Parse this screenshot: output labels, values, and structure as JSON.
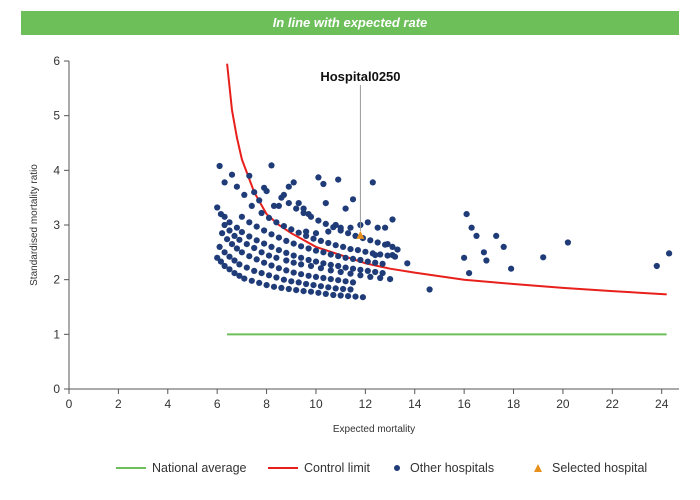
{
  "banner": {
    "text": "In line with expected rate",
    "color": "#6cbf59"
  },
  "chart_data": {
    "type": "scatter",
    "xlabel": "Expected mortality",
    "ylabel": "Standardised mortality ratio",
    "xlim": [
      0,
      24.7
    ],
    "ylim": [
      0,
      6
    ],
    "xticks": [
      0,
      2,
      4,
      6,
      8,
      10,
      12,
      14,
      16,
      18,
      20,
      22,
      24
    ],
    "yticks": [
      0,
      1,
      2,
      3,
      4,
      5,
      6
    ],
    "national_average": {
      "name": "National average",
      "y": 1,
      "x_range": [
        6.4,
        24.2
      ],
      "color": "#6cbf59"
    },
    "control_limit": {
      "name": "Control limit",
      "color": "#e8201c",
      "points": [
        [
          6.4,
          5.95
        ],
        [
          6.6,
          5.1
        ],
        [
          6.8,
          4.6
        ],
        [
          7.0,
          4.2
        ],
        [
          7.5,
          3.6
        ],
        [
          8.0,
          3.2
        ],
        [
          8.5,
          3.0
        ],
        [
          9.0,
          2.85
        ],
        [
          10.0,
          2.6
        ],
        [
          11.0,
          2.45
        ],
        [
          12.0,
          2.3
        ],
        [
          13.0,
          2.2
        ],
        [
          14.0,
          2.13
        ],
        [
          16.0,
          2.0
        ],
        [
          18.0,
          1.92
        ],
        [
          20.0,
          1.85
        ],
        [
          22.0,
          1.79
        ],
        [
          24.2,
          1.73
        ]
      ]
    },
    "other_hospitals": {
      "name": "Other hospitals",
      "color": "#1f3c78",
      "points": [
        [
          6.1,
          4.08
        ],
        [
          6.3,
          3.78
        ],
        [
          6.6,
          3.92
        ],
        [
          6.8,
          3.7
        ],
        [
          7.1,
          3.55
        ],
        [
          7.3,
          3.9
        ],
        [
          7.5,
          3.6
        ],
        [
          7.7,
          3.45
        ],
        [
          7.9,
          3.68
        ],
        [
          8.0,
          3.62
        ],
        [
          8.2,
          4.09
        ],
        [
          8.3,
          3.35
        ],
        [
          8.5,
          3.35
        ],
        [
          8.7,
          3.55
        ],
        [
          8.9,
          3.7
        ],
        [
          9.1,
          3.78
        ],
        [
          9.3,
          3.4
        ],
        [
          9.5,
          3.3
        ],
        [
          9.7,
          3.2
        ],
        [
          10.1,
          3.87
        ],
        [
          10.3,
          3.75
        ],
        [
          10.4,
          3.4
        ],
        [
          10.9,
          3.83
        ],
        [
          11.2,
          3.3
        ],
        [
          11.5,
          3.47
        ],
        [
          12.3,
          3.78
        ],
        [
          12.5,
          2.95
        ],
        [
          12.8,
          2.95
        ],
        [
          13.1,
          3.1
        ],
        [
          13.3,
          2.55
        ],
        [
          13.7,
          2.3
        ],
        [
          14.6,
          1.82
        ],
        [
          16.1,
          3.2
        ],
        [
          16.3,
          2.95
        ],
        [
          16.5,
          2.8
        ],
        [
          16.8,
          2.5
        ],
        [
          16.9,
          2.35
        ],
        [
          17.3,
          2.8
        ],
        [
          17.6,
          2.6
        ],
        [
          17.9,
          2.2
        ],
        [
          16.0,
          2.4
        ],
        [
          16.2,
          2.12
        ],
        [
          19.2,
          2.41
        ],
        [
          20.2,
          2.68
        ],
        [
          23.8,
          2.25
        ],
        [
          24.3,
          2.48
        ],
        [
          12.9,
          2.65
        ],
        [
          13.1,
          2.45
        ],
        [
          12.4,
          2.45
        ],
        [
          11.0,
          2.95
        ],
        [
          11.4,
          2.95
        ],
        [
          11.8,
          3.0
        ],
        [
          10.8,
          3.0
        ],
        [
          10.5,
          2.88
        ],
        [
          10.0,
          2.85
        ],
        [
          9.6,
          2.88
        ],
        [
          12.1,
          3.05
        ],
        [
          6.0,
          3.32
        ],
        [
          6.15,
          3.2
        ],
        [
          6.3,
          3.0
        ],
        [
          6.5,
          2.9
        ],
        [
          6.7,
          2.8
        ],
        [
          6.9,
          2.73
        ],
        [
          7.2,
          2.65
        ],
        [
          7.5,
          2.58
        ],
        [
          7.8,
          2.5
        ],
        [
          8.1,
          2.44
        ],
        [
          8.4,
          2.4
        ],
        [
          8.8,
          2.35
        ],
        [
          9.1,
          2.31
        ],
        [
          9.4,
          2.28
        ],
        [
          9.8,
          2.25
        ],
        [
          10.2,
          2.21
        ],
        [
          10.6,
          2.17
        ],
        [
          11.0,
          2.14
        ],
        [
          11.4,
          2.11
        ],
        [
          11.8,
          2.08
        ],
        [
          12.2,
          2.05
        ],
        [
          12.6,
          2.03
        ],
        [
          13.0,
          2.01
        ],
        [
          6.0,
          2.4
        ],
        [
          6.15,
          2.33
        ],
        [
          6.3,
          2.25
        ],
        [
          6.5,
          2.19
        ],
        [
          6.7,
          2.12
        ],
        [
          6.9,
          2.07
        ],
        [
          7.1,
          2.02
        ],
        [
          7.4,
          1.98
        ],
        [
          7.7,
          1.94
        ],
        [
          8.0,
          1.9
        ],
        [
          8.3,
          1.87
        ],
        [
          8.6,
          1.85
        ],
        [
          8.9,
          1.83
        ],
        [
          9.2,
          1.81
        ],
        [
          9.5,
          1.79
        ],
        [
          9.8,
          1.78
        ],
        [
          10.1,
          1.76
        ],
        [
          10.4,
          1.74
        ],
        [
          10.7,
          1.72
        ],
        [
          11.0,
          1.71
        ],
        [
          11.3,
          1.7
        ],
        [
          11.6,
          1.69
        ],
        [
          11.9,
          1.68
        ],
        [
          6.1,
          2.6
        ],
        [
          6.3,
          2.5
        ],
        [
          6.5,
          2.42
        ],
        [
          6.7,
          2.35
        ],
        [
          6.9,
          2.28
        ],
        [
          7.2,
          2.22
        ],
        [
          7.5,
          2.16
        ],
        [
          7.8,
          2.12
        ],
        [
          8.1,
          2.08
        ],
        [
          8.4,
          2.04
        ],
        [
          8.7,
          2.0
        ],
        [
          9.0,
          1.97
        ],
        [
          9.3,
          1.95
        ],
        [
          9.6,
          1.92
        ],
        [
          9.9,
          1.9
        ],
        [
          10.2,
          1.88
        ],
        [
          10.5,
          1.86
        ],
        [
          10.8,
          1.84
        ],
        [
          11.1,
          1.83
        ],
        [
          11.4,
          1.82
        ],
        [
          6.2,
          2.85
        ],
        [
          6.4,
          2.74
        ],
        [
          6.6,
          2.65
        ],
        [
          6.8,
          2.57
        ],
        [
          7.0,
          2.5
        ],
        [
          7.3,
          2.43
        ],
        [
          7.6,
          2.37
        ],
        [
          7.9,
          2.31
        ],
        [
          8.2,
          2.26
        ],
        [
          8.5,
          2.21
        ],
        [
          8.8,
          2.17
        ],
        [
          9.1,
          2.13
        ],
        [
          9.4,
          2.1
        ],
        [
          9.7,
          2.07
        ],
        [
          10.0,
          2.05
        ],
        [
          10.3,
          2.03
        ],
        [
          10.6,
          2.01
        ],
        [
          10.9,
          1.99
        ],
        [
          11.2,
          1.97
        ],
        [
          11.5,
          1.95
        ],
        [
          6.3,
          3.15
        ],
        [
          6.5,
          3.05
        ],
        [
          6.8,
          2.95
        ],
        [
          7.0,
          2.87
        ],
        [
          7.3,
          2.79
        ],
        [
          7.6,
          2.72
        ],
        [
          7.9,
          2.66
        ],
        [
          8.2,
          2.6
        ],
        [
          8.5,
          2.54
        ],
        [
          8.8,
          2.49
        ],
        [
          9.1,
          2.44
        ],
        [
          9.4,
          2.4
        ],
        [
          9.7,
          2.36
        ],
        [
          10.0,
          2.33
        ],
        [
          10.3,
          2.3
        ],
        [
          10.6,
          2.27
        ],
        [
          10.9,
          2.25
        ],
        [
          11.2,
          2.22
        ],
        [
          11.5,
          2.2
        ],
        [
          11.8,
          2.18
        ],
        [
          12.1,
          2.16
        ],
        [
          12.4,
          2.14
        ],
        [
          12.7,
          2.12
        ],
        [
          7.0,
          3.15
        ],
        [
          7.3,
          3.05
        ],
        [
          7.6,
          2.97
        ],
        [
          7.9,
          2.9
        ],
        [
          8.2,
          2.83
        ],
        [
          8.5,
          2.77
        ],
        [
          8.8,
          2.71
        ],
        [
          9.1,
          2.66
        ],
        [
          9.4,
          2.61
        ],
        [
          9.7,
          2.57
        ],
        [
          10.0,
          2.53
        ],
        [
          10.3,
          2.5
        ],
        [
          10.6,
          2.46
        ],
        [
          10.9,
          2.43
        ],
        [
          11.2,
          2.4
        ],
        [
          11.5,
          2.38
        ],
        [
          11.8,
          2.36
        ],
        [
          12.1,
          2.33
        ],
        [
          12.4,
          2.31
        ],
        [
          12.7,
          2.29
        ],
        [
          7.4,
          3.35
        ],
        [
          7.8,
          3.22
        ],
        [
          8.1,
          3.13
        ],
        [
          8.4,
          3.05
        ],
        [
          8.7,
          2.98
        ],
        [
          9.0,
          2.92
        ],
        [
          9.3,
          2.86
        ],
        [
          9.6,
          2.8
        ],
        [
          9.9,
          2.75
        ],
        [
          10.2,
          2.71
        ],
        [
          10.5,
          2.67
        ],
        [
          10.8,
          2.63
        ],
        [
          11.1,
          2.6
        ],
        [
          11.4,
          2.56
        ],
        [
          11.7,
          2.54
        ],
        [
          12.0,
          2.51
        ],
        [
          12.3,
          2.48
        ],
        [
          12.6,
          2.46
        ],
        [
          12.9,
          2.44
        ],
        [
          13.2,
          2.42
        ],
        [
          8.6,
          3.5
        ],
        [
          8.9,
          3.4
        ],
        [
          9.2,
          3.3
        ],
        [
          9.5,
          3.22
        ],
        [
          9.8,
          3.15
        ],
        [
          10.1,
          3.08
        ],
        [
          10.4,
          3.02
        ],
        [
          10.7,
          2.96
        ],
        [
          11.0,
          2.9
        ],
        [
          11.3,
          2.85
        ],
        [
          11.6,
          2.8
        ],
        [
          11.9,
          2.76
        ],
        [
          12.2,
          2.72
        ],
        [
          12.5,
          2.68
        ],
        [
          12.8,
          2.64
        ],
        [
          13.1,
          2.6
        ]
      ]
    },
    "selected_hospital": {
      "name": "Selected hospital",
      "label": "Hospital0250",
      "x": 11.8,
      "y": 2.8,
      "color": "#e8901c"
    }
  }
}
